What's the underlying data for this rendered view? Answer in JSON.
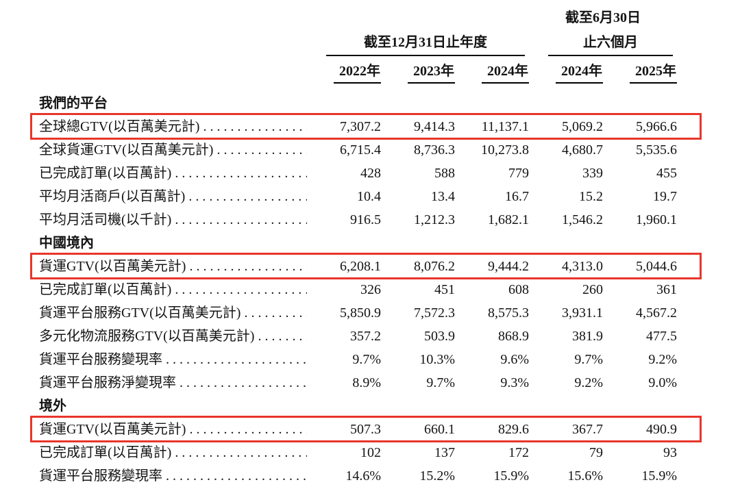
{
  "colors": {
    "highlight_box": "#e8352a",
    "text": "#141414",
    "rule": "#000000",
    "background": "#ffffff"
  },
  "leader": ". . . . . . . . . . . . . . . . . . . . . . . . . . . . . . . . . . . . . . . . . . . . . .",
  "header": {
    "groups": [
      {
        "line1": "",
        "line2": "截至12月31日止年度"
      },
      {
        "line1": "截至6月30日",
        "line2": "止六個月"
      }
    ],
    "years": [
      "2022年",
      "2023年",
      "2024年",
      "2024年",
      "2025年"
    ]
  },
  "rows": [
    {
      "type": "section",
      "label": "我們的平台"
    },
    {
      "type": "data",
      "highlighted": true,
      "label": "全球總GTV(以百萬美元計)",
      "values": [
        "7,307.2",
        "9,414.3",
        "11,137.1",
        "5,069.2",
        "5,966.6"
      ]
    },
    {
      "type": "data",
      "highlighted": false,
      "label": "全球貨運GTV(以百萬美元計)",
      "values": [
        "6,715.4",
        "8,736.3",
        "10,273.8",
        "4,680.7",
        "5,535.6"
      ]
    },
    {
      "type": "data",
      "highlighted": false,
      "label": "已完成訂單(以百萬計)",
      "values": [
        "428",
        "588",
        "779",
        "339",
        "455"
      ]
    },
    {
      "type": "data",
      "highlighted": false,
      "label": "平均月活商戶(以百萬計)",
      "values": [
        "10.4",
        "13.4",
        "16.7",
        "15.2",
        "19.7"
      ]
    },
    {
      "type": "data",
      "highlighted": false,
      "label": "平均月活司機(以千計)",
      "values": [
        "916.5",
        "1,212.3",
        "1,682.1",
        "1,546.2",
        "1,960.1"
      ]
    },
    {
      "type": "section",
      "label": "中國境內"
    },
    {
      "type": "data",
      "highlighted": true,
      "label": "貨運GTV(以百萬美元計)",
      "values": [
        "6,208.1",
        "8,076.2",
        "9,444.2",
        "4,313.0",
        "5,044.6"
      ]
    },
    {
      "type": "data",
      "highlighted": false,
      "label": "已完成訂單(以百萬計)",
      "values": [
        "326",
        "451",
        "608",
        "260",
        "361"
      ]
    },
    {
      "type": "data",
      "highlighted": false,
      "label": "貨運平台服務GTV(以百萬美元計)",
      "values": [
        "5,850.9",
        "7,572.3",
        "8,575.3",
        "3,931.1",
        "4,567.2"
      ]
    },
    {
      "type": "data",
      "highlighted": false,
      "label": "多元化物流服務GTV(以百萬美元計)",
      "values": [
        "357.2",
        "503.9",
        "868.9",
        "381.9",
        "477.5"
      ]
    },
    {
      "type": "data",
      "highlighted": false,
      "label": "貨運平台服務變現率",
      "values": [
        "9.7%",
        "10.3%",
        "9.6%",
        "9.7%",
        "9.2%"
      ]
    },
    {
      "type": "data",
      "highlighted": false,
      "label": "貨運平台服務淨變現率",
      "values": [
        "8.9%",
        "9.7%",
        "9.3%",
        "9.2%",
        "9.0%"
      ]
    },
    {
      "type": "section",
      "label": "境外"
    },
    {
      "type": "data",
      "highlighted": true,
      "label": "貨運GTV(以百萬美元計)",
      "values": [
        "507.3",
        "660.1",
        "829.6",
        "367.7",
        "490.9"
      ]
    },
    {
      "type": "data",
      "highlighted": false,
      "label": "已完成訂單(以百萬計)",
      "values": [
        "102",
        "137",
        "172",
        "79",
        "93"
      ]
    },
    {
      "type": "data",
      "highlighted": false,
      "label": "貨運平台服務變現率",
      "values": [
        "14.6%",
        "15.2%",
        "15.9%",
        "15.6%",
        "15.9%"
      ]
    }
  ]
}
